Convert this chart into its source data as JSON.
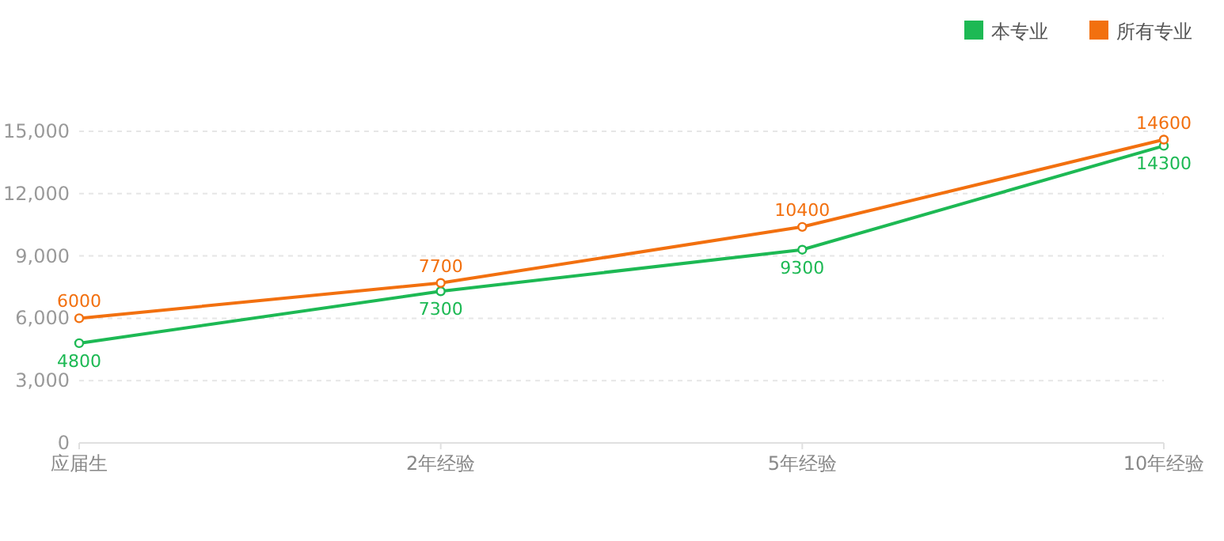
{
  "chart_data": {
    "type": "line",
    "categories": [
      "应届生",
      "2年经验",
      "5年经验",
      "10年经验"
    ],
    "series": [
      {
        "name": "本专业",
        "color": "#1db954",
        "values": [
          4800,
          7300,
          9300,
          14300
        ]
      },
      {
        "name": "所有专业",
        "color": "#f2700f",
        "values": [
          6000,
          7700,
          10400,
          14600
        ]
      }
    ],
    "ylim": [
      0,
      15000
    ],
    "yticks": [
      {
        "value": 0,
        "label": "0"
      },
      {
        "value": 3000,
        "label": "3,000"
      },
      {
        "value": 6000,
        "label": "6,000"
      },
      {
        "value": 9000,
        "label": "9,000"
      },
      {
        "value": 12000,
        "label": "12,000"
      },
      {
        "value": 15000,
        "label": "15,000"
      }
    ],
    "grid": "y",
    "legend": "top right",
    "marker": "circle",
    "data_labels": true
  }
}
